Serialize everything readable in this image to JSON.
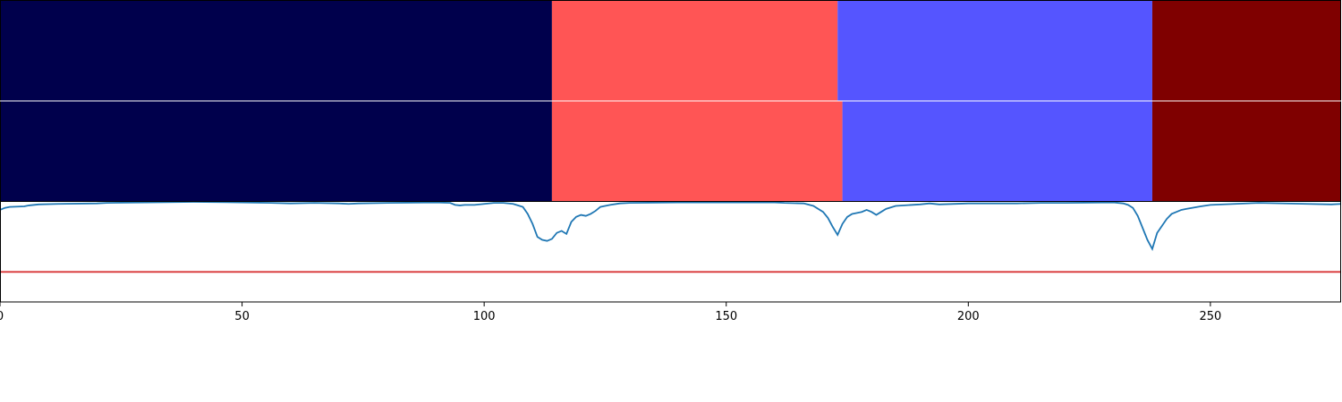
{
  "chart_data": {
    "type": "segmentation-with-line",
    "title": "",
    "xlabel": "",
    "ylabel": "",
    "xlim": [
      0,
      277
    ],
    "xticks": [
      0,
      50,
      100,
      150,
      200,
      250
    ],
    "xtick_labels": [
      "0",
      "50",
      "100",
      "150",
      "200",
      "250"
    ],
    "segment_rows": [
      {
        "segments": [
          {
            "start": 0,
            "end": 114,
            "color": "#00004c"
          },
          {
            "start": 114,
            "end": 173,
            "color": "#ff5555"
          },
          {
            "start": 173,
            "end": 238,
            "color": "#5555ff"
          },
          {
            "start": 238,
            "end": 277,
            "color": "#7f0000"
          }
        ]
      },
      {
        "segments": [
          {
            "start": 0,
            "end": 114,
            "color": "#00004c"
          },
          {
            "start": 114,
            "end": 174,
            "color": "#ff5555"
          },
          {
            "start": 174,
            "end": 238,
            "color": "#5555ff"
          },
          {
            "start": 238,
            "end": 277,
            "color": "#7f0000"
          }
        ]
      }
    ],
    "line_plot": {
      "ylim": [
        0,
        1
      ],
      "threshold": 0.3,
      "threshold_color": "#d62728",
      "line_color": "#1f77b4",
      "points": [
        [
          0,
          0.92
        ],
        [
          1,
          0.94
        ],
        [
          2,
          0.95
        ],
        [
          5,
          0.955
        ],
        [
          6,
          0.965
        ],
        [
          8,
          0.975
        ],
        [
          12,
          0.98
        ],
        [
          20,
          0.985
        ],
        [
          22,
          0.99
        ],
        [
          30,
          0.995
        ],
        [
          40,
          1.0
        ],
        [
          50,
          0.995
        ],
        [
          56,
          0.99
        ],
        [
          60,
          0.985
        ],
        [
          65,
          0.99
        ],
        [
          70,
          0.985
        ],
        [
          72,
          0.98
        ],
        [
          74,
          0.985
        ],
        [
          80,
          0.99
        ],
        [
          90,
          0.995
        ],
        [
          93,
          0.99
        ],
        [
          94,
          0.97
        ],
        [
          95,
          0.965
        ],
        [
          96,
          0.97
        ],
        [
          98,
          0.97
        ],
        [
          100,
          0.98
        ],
        [
          102,
          0.99
        ],
        [
          104,
          0.99
        ],
        [
          106,
          0.98
        ],
        [
          108,
          0.95
        ],
        [
          109,
          0.88
        ],
        [
          110,
          0.78
        ],
        [
          111,
          0.65
        ],
        [
          112,
          0.62
        ],
        [
          113,
          0.61
        ],
        [
          114,
          0.63
        ],
        [
          115,
          0.69
        ],
        [
          116,
          0.71
        ],
        [
          117,
          0.68
        ],
        [
          118,
          0.8
        ],
        [
          119,
          0.85
        ],
        [
          120,
          0.87
        ],
        [
          121,
          0.86
        ],
        [
          122,
          0.88
        ],
        [
          123,
          0.91
        ],
        [
          124,
          0.95
        ],
        [
          126,
          0.97
        ],
        [
          128,
          0.985
        ],
        [
          130,
          0.99
        ],
        [
          140,
          0.995
        ],
        [
          150,
          0.995
        ],
        [
          160,
          0.995
        ],
        [
          162,
          0.99
        ],
        [
          166,
          0.985
        ],
        [
          168,
          0.96
        ],
        [
          170,
          0.9
        ],
        [
          171,
          0.84
        ],
        [
          172,
          0.75
        ],
        [
          173,
          0.67
        ],
        [
          174,
          0.78
        ],
        [
          175,
          0.85
        ],
        [
          176,
          0.88
        ],
        [
          177,
          0.89
        ],
        [
          178,
          0.9
        ],
        [
          179,
          0.92
        ],
        [
          180,
          0.9
        ],
        [
          181,
          0.87
        ],
        [
          182,
          0.9
        ],
        [
          183,
          0.93
        ],
        [
          185,
          0.96
        ],
        [
          190,
          0.975
        ],
        [
          192,
          0.985
        ],
        [
          194,
          0.975
        ],
        [
          200,
          0.985
        ],
        [
          210,
          0.985
        ],
        [
          215,
          0.99
        ],
        [
          220,
          0.99
        ],
        [
          230,
          0.995
        ],
        [
          232,
          0.985
        ],
        [
          233,
          0.97
        ],
        [
          234,
          0.94
        ],
        [
          235,
          0.86
        ],
        [
          236,
          0.74
        ],
        [
          237,
          0.62
        ],
        [
          238,
          0.53
        ],
        [
          239,
          0.69
        ],
        [
          240,
          0.76
        ],
        [
          241,
          0.83
        ],
        [
          242,
          0.88
        ],
        [
          243,
          0.9
        ],
        [
          244,
          0.92
        ],
        [
          245,
          0.93
        ],
        [
          248,
          0.955
        ],
        [
          250,
          0.97
        ],
        [
          260,
          0.99
        ],
        [
          270,
          0.98
        ],
        [
          275,
          0.975
        ],
        [
          277,
          0.98
        ]
      ]
    }
  }
}
